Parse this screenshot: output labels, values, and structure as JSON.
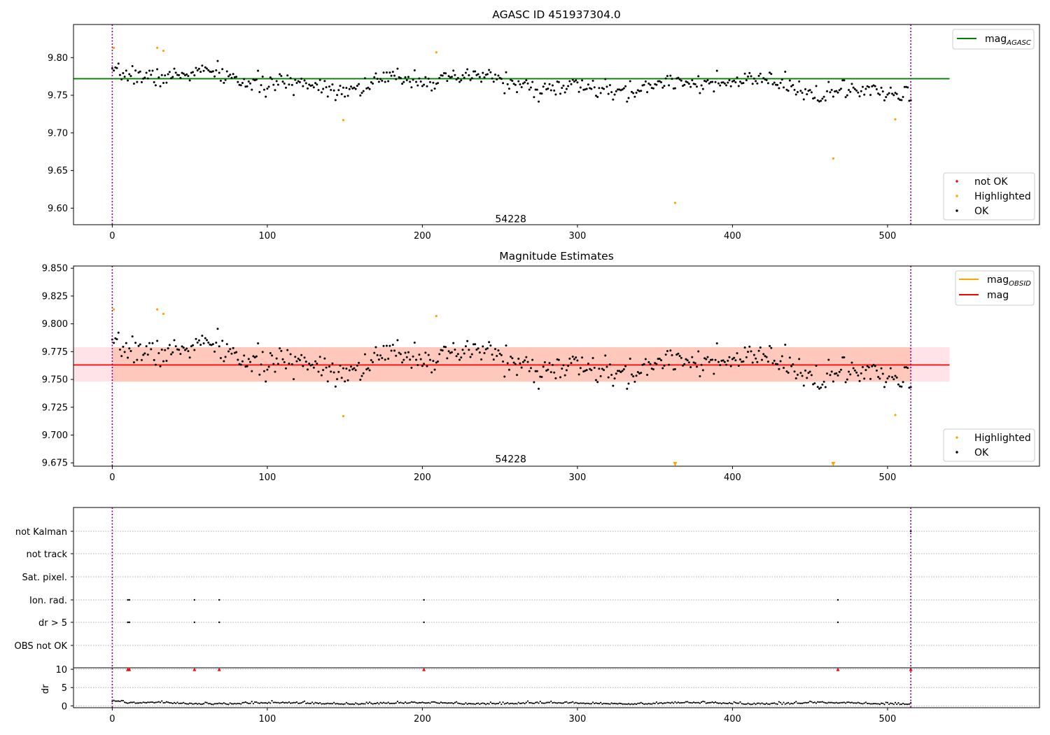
{
  "figure_title": "AGASC ID 451937304.0",
  "chart_data": [
    {
      "type": "scatter",
      "title": "AGASC ID 451937304.0",
      "xlim": [
        -25,
        598
      ],
      "ylim": [
        9.578,
        9.844
      ],
      "x_ticks": [
        0,
        100,
        200,
        300,
        400,
        500
      ],
      "y_ticks": [
        9.6,
        9.65,
        9.7,
        9.75,
        9.8
      ],
      "y_tick_labels": [
        "9.60",
        "9.65",
        "9.70",
        "9.75",
        "9.80"
      ],
      "vlines": [
        0,
        515
      ],
      "hline": {
        "name": "mag_AGASC",
        "y": 9.772,
        "color": "#008000",
        "x_range": [
          -25,
          540
        ]
      },
      "annotation": {
        "text": "54228",
        "x": 257,
        "y": 9.585
      },
      "legend_upper": [
        {
          "label": "mag",
          "subscript": "AGASC",
          "color": "#008000"
        }
      ],
      "legend_lower": [
        {
          "label": "not OK",
          "color": "#ff0000"
        },
        {
          "label": "Highlighted",
          "color": "#ffa500"
        },
        {
          "label": "OK",
          "color": "#000000"
        }
      ],
      "series": [
        {
          "name": "OK",
          "color": "#000000",
          "generator": {
            "n": 516,
            "base": 9.7725,
            "slope": -2.8e-05,
            "amp": 0.012,
            "noise": 0.011,
            "seed": 7
          }
        },
        {
          "name": "Highlighted",
          "color": "#ffa500",
          "points": [
            [
              1,
              9.813
            ],
            [
              29,
              9.813
            ],
            [
              33,
              9.809
            ],
            [
              149,
              9.717
            ],
            [
              209,
              9.807
            ],
            [
              363,
              9.607
            ],
            [
              465,
              9.666
            ],
            [
              505,
              9.718
            ]
          ]
        }
      ]
    },
    {
      "type": "scatter",
      "title": "Magnitude Estimates",
      "xlim": [
        -25,
        598
      ],
      "ylim": [
        9.672,
        9.852
      ],
      "x_ticks": [
        0,
        100,
        200,
        300,
        400,
        500
      ],
      "y_ticks": [
        9.675,
        9.7,
        9.725,
        9.75,
        9.775,
        9.8,
        9.825,
        9.85
      ],
      "y_tick_labels": [
        "9.675",
        "9.700",
        "9.725",
        "9.750",
        "9.775",
        "9.800",
        "9.825",
        "9.850"
      ],
      "vlines": [
        0,
        515
      ],
      "hline": {
        "name": "mag",
        "y": 9.763,
        "color": "#ff0000",
        "x_range": [
          -25,
          540
        ]
      },
      "band_outer": {
        "y0": 9.748,
        "y1": 9.779,
        "color": "#ffc0cb"
      },
      "band_inner": {
        "y0": 9.748,
        "y1": 9.779,
        "color": "#ffa07a"
      },
      "annotation": {
        "text": "54228",
        "x": 257,
        "y": 9.678
      },
      "legend_upper": [
        {
          "label": "mag",
          "subscript": "OBSID",
          "color": "#ffa500"
        },
        {
          "label": "mag",
          "subscript": "",
          "color": "#ff0000"
        }
      ],
      "legend_lower": [
        {
          "label": "Highlighted",
          "color": "#ffa500"
        },
        {
          "label": "OK",
          "color": "#000000"
        }
      ],
      "series": [
        {
          "name": "OK",
          "color": "#000000",
          "generator": {
            "n": 516,
            "base": 9.7725,
            "slope": -2.8e-05,
            "amp": 0.012,
            "noise": 0.011,
            "seed": 7
          }
        },
        {
          "name": "Highlighted",
          "color": "#ffa500",
          "points": [
            [
              1,
              9.813
            ],
            [
              29,
              9.813
            ],
            [
              33,
              9.809
            ],
            [
              149,
              9.717
            ],
            [
              209,
              9.807
            ],
            [
              505,
              9.718
            ]
          ]
        },
        {
          "name": "Highlighted (out of range)",
          "color": "#ffa500",
          "marker": "triangle-down",
          "points": [
            [
              363,
              9.674
            ],
            [
              465,
              9.674
            ]
          ]
        }
      ]
    },
    {
      "type": "scatter",
      "title": "",
      "xlim": [
        -25,
        598
      ],
      "categories": [
        "not Kalman",
        "not track",
        "Sat. pixel.",
        "Ion. rad.",
        "dr > 5",
        "OBS not OK"
      ],
      "vlines": [
        0,
        515
      ],
      "flag_points": {
        "Ion. rad.": [
          10,
          11,
          53,
          69,
          201,
          468
        ],
        "dr > 5": [
          10,
          11,
          53,
          69,
          201,
          468
        ],
        "not Kalman": [
          515
        ]
      },
      "dr_panel": {
        "ylabel": "dr",
        "ylim": [
          -0.5,
          10.4
        ],
        "y_ticks": [
          0,
          5,
          10
        ],
        "y_tick_labels": [
          "0",
          "5",
          "10"
        ],
        "clipped_points": [
          10,
          11,
          53,
          69,
          201,
          468,
          515
        ],
        "generator": {
          "n": 516,
          "base": 0.55,
          "amp": 0.35,
          "noise": 0.25,
          "seed": 11
        }
      }
    }
  ]
}
